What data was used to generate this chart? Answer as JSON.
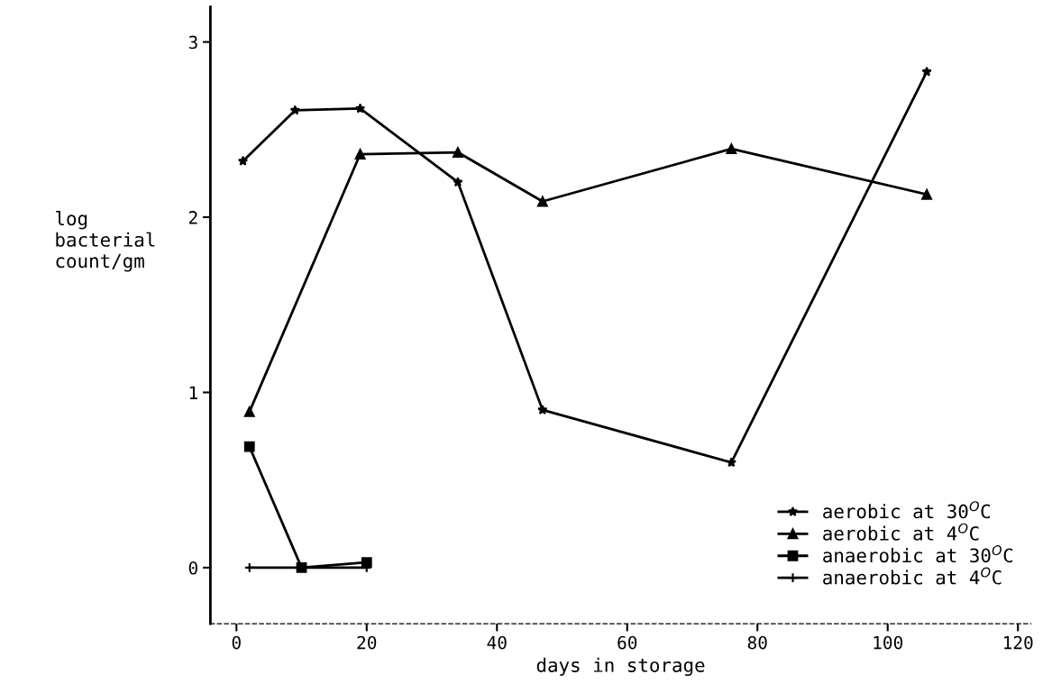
{
  "chart_data": {
    "type": "line",
    "xlabel": "days in storage",
    "ylabel": "log\nbacterial\ncount/gm",
    "xlim": [
      -4,
      122
    ],
    "ylim": [
      -0.32,
      3.2
    ],
    "xticks": [
      0,
      20,
      40,
      60,
      80,
      100,
      120
    ],
    "yticks": [
      0,
      1,
      2,
      3
    ],
    "legend": "bottom right",
    "grid": false,
    "line_style": "solid",
    "series": [
      {
        "name": "aerobic at 30$^{O}$C",
        "color": "#000000",
        "marker": "star",
        "x": [
          1,
          9,
          19,
          34,
          47,
          76,
          106
        ],
        "values": [
          2.32,
          2.61,
          2.62,
          2.2,
          0.9,
          0.6,
          2.83
        ]
      },
      {
        "name": "aerobic at 4$^{O}$C",
        "color": "#000000",
        "marker": "triangle",
        "x": [
          2,
          19,
          34,
          47,
          76,
          106
        ],
        "values": [
          0.89,
          2.36,
          2.37,
          2.09,
          2.39,
          2.13
        ]
      },
      {
        "name": "anaerobic at 30$^{O}$C",
        "color": "#000000",
        "marker": "square",
        "x": [
          2,
          10,
          20
        ],
        "values": [
          0.69,
          0,
          0.03
        ]
      },
      {
        "name": "anaerobic at 4$^{O}$C",
        "color": "#000000",
        "marker": "cross",
        "x": [
          2,
          10,
          20
        ],
        "values": [
          0,
          0,
          0
        ]
      }
    ]
  }
}
